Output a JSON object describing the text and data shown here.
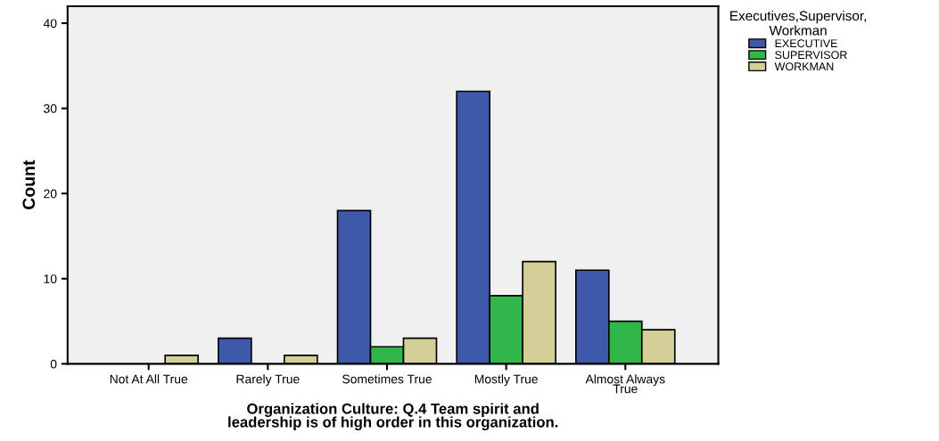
{
  "chart_data": {
    "type": "bar",
    "xlabel": "Organization Culture: Q.4 Team spirit and\nleadership is of high order in this organization.",
    "ylabel": "Count",
    "legend_title": "Executives,Supervisor,\nWorkman",
    "categories": [
      "Not At All True",
      "Rarely True",
      "Sometimes True",
      "Mostly True",
      "Almost Always\nTrue"
    ],
    "series": [
      {
        "name": "EXECUTIVE",
        "color": "#3e58aa",
        "values": [
          0,
          3,
          18,
          32,
          11
        ]
      },
      {
        "name": "SUPERVISOR",
        "color": "#30b74a",
        "values": [
          0,
          0,
          2,
          8,
          5
        ]
      },
      {
        "name": "WORKMAN",
        "color": "#d4cf98",
        "values": [
          1,
          1,
          3,
          12,
          4
        ]
      }
    ],
    "ylim": [
      0,
      42
    ],
    "yticks": [
      0,
      10,
      20,
      30,
      40
    ],
    "grid": false,
    "legend": "top right"
  }
}
